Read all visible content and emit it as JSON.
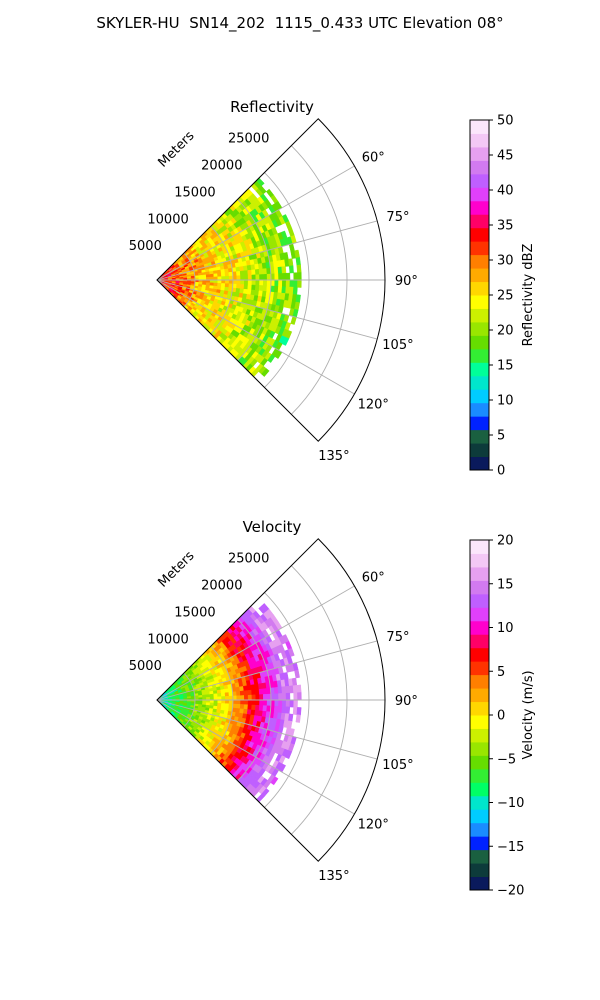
{
  "figure": {
    "title": "SKYLER-HU  SN14_202  1115_0.433 UTC Elevation 08°"
  },
  "chart_data": [
    {
      "type": "heatmap",
      "subtype": "polar-sector-ppi",
      "title": "Reflectivity",
      "radial_axis_label": "Meters",
      "radial_ticks": [
        5000,
        10000,
        15000,
        20000,
        25000
      ],
      "radial_tick_labels": [
        "5000",
        "10000",
        "15000",
        "20000",
        "25000"
      ],
      "radial_max": 30000,
      "azimuth_range_deg": [
        45,
        135
      ],
      "azimuth_ticks_deg": [
        60,
        75,
        90,
        105,
        120,
        135
      ],
      "azimuth_tick_labels": [
        "60°",
        "75°",
        "90°",
        "105°",
        "120°",
        "135°"
      ],
      "grid": true,
      "data_range_m": [
        0,
        19000
      ],
      "colorbar": {
        "label": "Reflectivity dBZ",
        "vmin": 0,
        "vmax": 50,
        "ticks": [
          0,
          5,
          10,
          15,
          20,
          25,
          30,
          35,
          40,
          45,
          50
        ],
        "tick_labels": [
          "0",
          "5",
          "10",
          "15",
          "20",
          "25",
          "30",
          "35",
          "40",
          "45",
          "50"
        ],
        "colors": [
          "#0a1a5c",
          "#0d3b3b",
          "#1a6040",
          "#0022ff",
          "#1a8cff",
          "#00ccff",
          "#00e6cc",
          "#00ff99",
          "#33ee33",
          "#66dd00",
          "#99e600",
          "#ccf000",
          "#ffff00",
          "#ffd700",
          "#ffaa00",
          "#ff7f00",
          "#ff3300",
          "#ff0000",
          "#ff0066",
          "#ff00cc",
          "#e040fb",
          "#bf5fff",
          "#d27af0",
          "#e6a0f0",
          "#f3c8f5",
          "#fbe6fb"
        ]
      },
      "field_values": [
        {
          "range_m": 1000,
          "value": 33
        },
        {
          "range_m": 3000,
          "value": 31
        },
        {
          "range_m": 5000,
          "value": 28
        },
        {
          "range_m": 7000,
          "value": 26
        },
        {
          "range_m": 9000,
          "value": 25
        },
        {
          "range_m": 11000,
          "value": 24
        },
        {
          "range_m": 13000,
          "value": 22
        },
        {
          "range_m": 15000,
          "value": 21
        },
        {
          "range_m": 17000,
          "value": 20
        },
        {
          "range_m": 19000,
          "value": 18
        }
      ]
    },
    {
      "type": "heatmap",
      "subtype": "polar-sector-ppi",
      "title": "Velocity",
      "radial_axis_label": "Meters",
      "radial_ticks": [
        5000,
        10000,
        15000,
        20000,
        25000
      ],
      "radial_tick_labels": [
        "5000",
        "10000",
        "15000",
        "20000",
        "25000"
      ],
      "radial_max": 30000,
      "azimuth_range_deg": [
        45,
        135
      ],
      "azimuth_ticks_deg": [
        60,
        75,
        90,
        105,
        120,
        135
      ],
      "azimuth_tick_labels": [
        "60°",
        "75°",
        "90°",
        "105°",
        "120°",
        "135°"
      ],
      "grid": true,
      "data_range_m": [
        0,
        19000
      ],
      "colorbar": {
        "label": "Velocity (m/s)",
        "vmin": -20,
        "vmax": 20,
        "ticks": [
          -20,
          -15,
          -10,
          -5,
          0,
          5,
          10,
          15,
          20
        ],
        "tick_labels": [
          "−20",
          "−15",
          "−10",
          "−5",
          "0",
          "5",
          "10",
          "15",
          "20"
        ],
        "colors": [
          "#0a1a5c",
          "#0d3b3b",
          "#1a6040",
          "#0022ff",
          "#1a8cff",
          "#00ccff",
          "#00e6cc",
          "#00ff66",
          "#33ee33",
          "#66dd00",
          "#99e600",
          "#ccf000",
          "#ffff00",
          "#ffd700",
          "#ffaa00",
          "#ff7f00",
          "#ff3300",
          "#ff0000",
          "#ff0066",
          "#ff00cc",
          "#e040fb",
          "#bf5fff",
          "#d27af0",
          "#e6a0f0",
          "#f3c8f5",
          "#fbe6fb"
        ]
      },
      "field_values": [
        {
          "range_m": 1000,
          "value": -10
        },
        {
          "range_m": 3000,
          "value": -7
        },
        {
          "range_m": 5000,
          "value": -5
        },
        {
          "range_m": 7000,
          "value": -3
        },
        {
          "range_m": 9000,
          "value": 0
        },
        {
          "range_m": 11000,
          "value": 3
        },
        {
          "range_m": 13000,
          "value": 8
        },
        {
          "range_m": 15000,
          "value": 11
        },
        {
          "range_m": 17000,
          "value": 15
        },
        {
          "range_m": 19000,
          "value": 14
        }
      ]
    }
  ]
}
